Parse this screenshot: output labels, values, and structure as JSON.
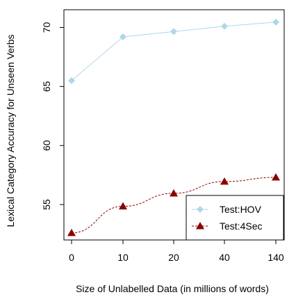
{
  "chart_data": {
    "type": "line",
    "title": "",
    "xlabel": "Size of Unlabelled Data (in millions of words)",
    "ylabel": "Lexical Category Accuracy for Unseen Verbs",
    "categories": [
      "0",
      "10",
      "20",
      "40",
      "140"
    ],
    "ylim": [
      52,
      71.5
    ],
    "yticks": [
      55,
      60,
      65,
      70
    ],
    "grid": false,
    "legend_position": "bottom-right",
    "series": [
      {
        "name": "Test:HOV",
        "values": [
          65.5,
          69.2,
          69.65,
          70.1,
          70.45
        ],
        "color": "#add8e6",
        "marker": "diamond",
        "line_style": "solid"
      },
      {
        "name": "Test:4Sec",
        "values": [
          52.6,
          54.85,
          55.95,
          56.95,
          57.3
        ],
        "color": "#8b0000",
        "marker": "triangle",
        "line_style": "dashed"
      }
    ]
  }
}
